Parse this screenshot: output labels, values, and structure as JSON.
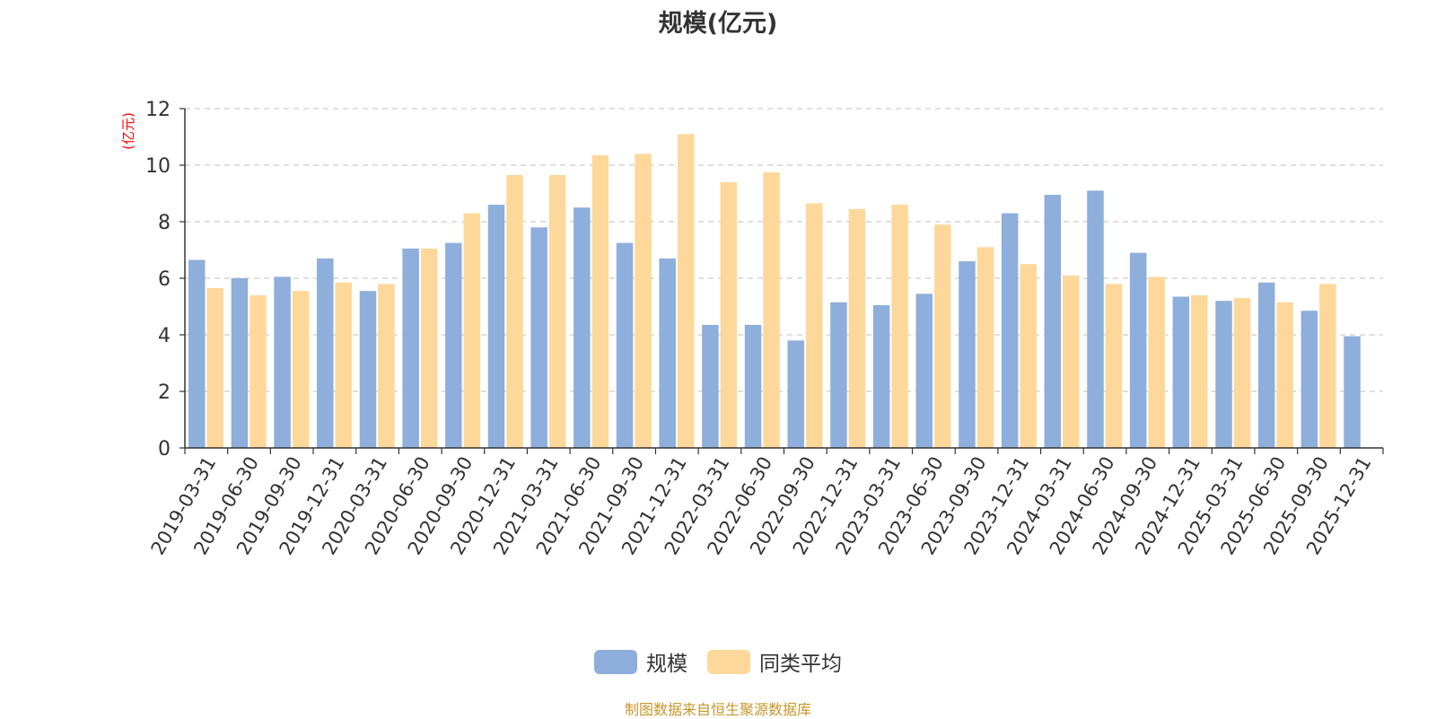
{
  "chart_data": {
    "type": "bar",
    "title": "规模(亿元)",
    "ylabel": "(亿元)",
    "xlabel": "",
    "ylim": [
      0,
      12
    ],
    "yticks": [
      0,
      2,
      4,
      6,
      8,
      10,
      12
    ],
    "grid": true,
    "legend_position": "bottom-center",
    "categories": [
      "2019-03-31",
      "2019-06-30",
      "2019-09-30",
      "2019-12-31",
      "2020-03-31",
      "2020-06-30",
      "2020-09-30",
      "2020-12-31",
      "2021-03-31",
      "2021-06-30",
      "2021-09-30",
      "2021-12-31",
      "2022-03-31",
      "2022-06-30",
      "2022-09-30",
      "2022-12-31",
      "2023-03-31",
      "2023-06-30",
      "2023-09-30",
      "2023-12-31",
      "2024-03-31",
      "2024-06-30",
      "2024-09-30",
      "2024-12-31",
      "2025-03-31",
      "2025-06-30",
      "2025-09-30",
      "2025-12-31"
    ],
    "series": [
      {
        "name": "规模",
        "color": "#8eaedb",
        "values": [
          6.65,
          6.0,
          6.05,
          6.7,
          5.55,
          7.05,
          7.25,
          8.6,
          7.8,
          8.5,
          7.25,
          6.7,
          4.35,
          4.35,
          3.8,
          5.15,
          5.05,
          5.45,
          6.6,
          8.3,
          8.95,
          9.1,
          6.9,
          5.35,
          5.2,
          5.85,
          4.85,
          3.95
        ]
      },
      {
        "name": "同类平均",
        "color": "#fdd89a",
        "values": [
          5.65,
          5.4,
          5.55,
          5.85,
          5.8,
          7.05,
          8.3,
          9.65,
          9.65,
          10.35,
          10.4,
          11.1,
          9.4,
          9.75,
          8.65,
          8.45,
          8.6,
          7.9,
          7.1,
          6.5,
          6.1,
          5.8,
          6.05,
          5.4,
          5.3,
          5.15,
          5.8,
          null
        ]
      }
    ]
  },
  "source_note": "制图数据来自恒生聚源数据库"
}
